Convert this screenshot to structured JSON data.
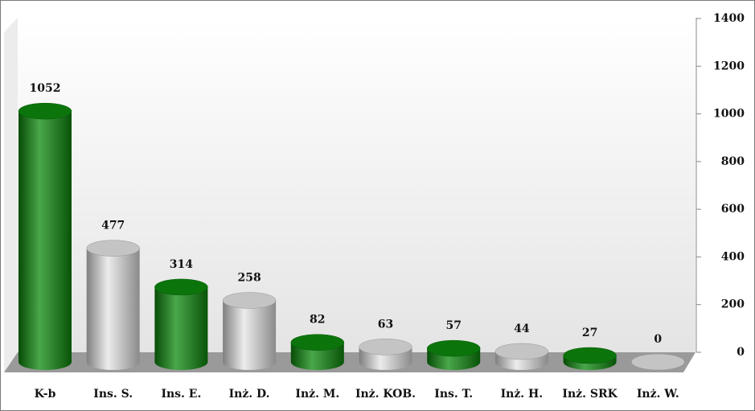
{
  "chart_data": {
    "type": "bar",
    "categories": [
      "K-b",
      "Ins. S.",
      "Ins. E.",
      "Inż. D.",
      "Inż. M.",
      "Inż. KOB.",
      "Ins. T.",
      "Inż. H.",
      "Inż. SRK",
      "Inż. W."
    ],
    "values": [
      1052,
      477,
      314,
      258,
      82,
      63,
      57,
      44,
      27,
      0
    ],
    "colors": [
      "#0d8a0d",
      "#e6e6e6",
      "#0d8a0d",
      "#e6e6e6",
      "#0d8a0d",
      "#e6e6e6",
      "#0d8a0d",
      "#e6e6e6",
      "#0d8a0d",
      "#e6e6e6"
    ],
    "ylim": [
      0,
      1400
    ],
    "yticks": [
      0,
      200,
      400,
      600,
      800,
      1000,
      1200,
      1400
    ],
    "grid": false
  }
}
